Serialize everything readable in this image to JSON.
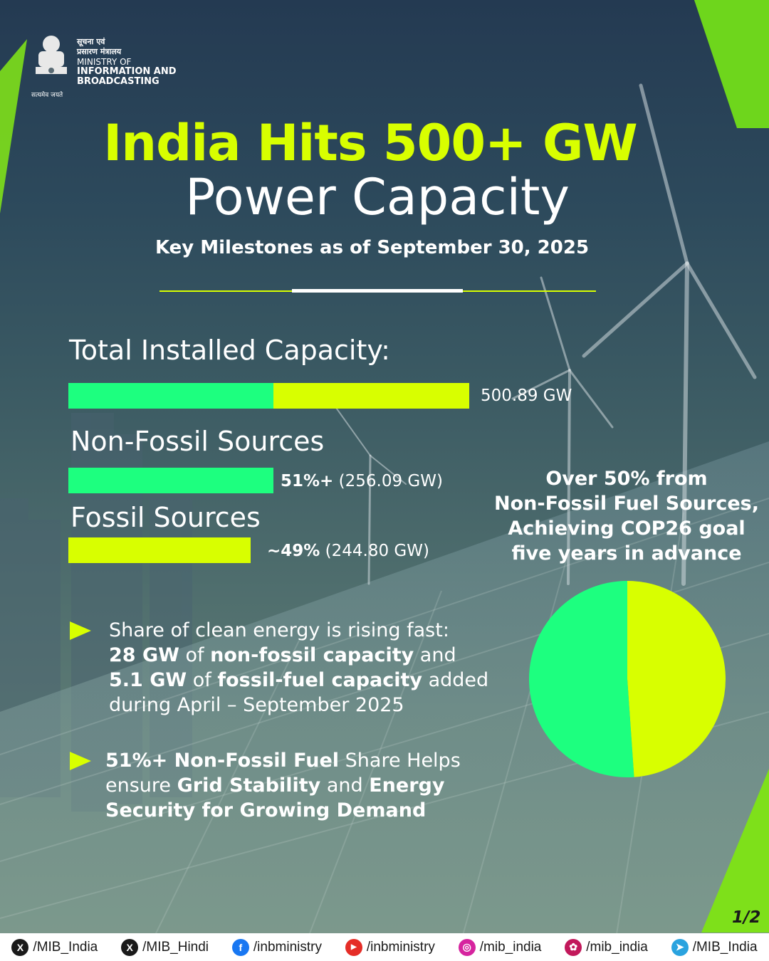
{
  "header": {
    "hindi_line1": "सूचना एवं",
    "hindi_line2": "प्रसारण मंत्रालय",
    "ministry_line1": "MINISTRY OF",
    "ministry_line2": "INFORMATION AND",
    "ministry_line3": "BROADCASTING",
    "emblem_motto": "सत्यमेव जयते"
  },
  "title": {
    "line1": "India Hits 500+ GW",
    "line2": "Power Capacity",
    "subtitle": "Key Milestones as of September 30, 2025"
  },
  "capacity": {
    "total_label": "Total Installed Capacity:",
    "total_value": "500.89 GW",
    "nonfossil_label": "Non-Fossil Sources",
    "nonfossil_pct": "51%+",
    "nonfossil_gw": " (256.09 GW)",
    "fossil_label": "Fossil Sources",
    "fossil_pct": "~49%",
    "fossil_gw": " (244.80 GW)"
  },
  "bullets": {
    "b1_line1": "Share of clean energy is rising fast:",
    "b1_l2_a": "28 GW",
    "b1_l2_b": " of ",
    "b1_l2_c": "non-fossil capacity",
    "b1_l2_d": " and",
    "b1_l3_a": "5.1 GW",
    "b1_l3_b": " of ",
    "b1_l3_c": "fossil-fuel capacity",
    "b1_l3_d": " added",
    "b1_line4": "during April – September 2025",
    "b2_l1_a": "51%+ Non-Fossil Fuel",
    "b2_l1_b": " Share Helps",
    "b2_l2_a": "ensure ",
    "b2_l2_b": "Grid Stability",
    "b2_l2_c": " and ",
    "b2_l2_d": "Energy",
    "b2_line3": "Security for Growing Demand"
  },
  "pie_heading": {
    "line1": "Over 50% from",
    "line2": "Non-Fossil Fuel Sources,",
    "line3": "Achieving COP26 goal",
    "line4": "five years in advance"
  },
  "page_indicator": "1/2",
  "footer": {
    "handles": [
      {
        "icon": "x-icon",
        "label": "/MIB_India"
      },
      {
        "icon": "x-icon",
        "label": "/MIB_Hindi"
      },
      {
        "icon": "facebook-icon",
        "label": "/inbministry"
      },
      {
        "icon": "youtube-icon",
        "label": "/inbministry"
      },
      {
        "icon": "instagram-icon",
        "label": "/mib_india"
      },
      {
        "icon": "koo-icon",
        "label": "/mib_india"
      },
      {
        "icon": "telegram-icon",
        "label": "/MIB_India"
      }
    ]
  },
  "colors": {
    "lime": "#d8ff00",
    "green": "#1dff7f"
  },
  "chart_data": [
    {
      "type": "bar",
      "orientation": "horizontal",
      "categories": [
        "Total Installed Capacity:",
        "Non-Fossil Sources",
        "Fossil Sources"
      ],
      "values": [
        500.89,
        256.09,
        244.8
      ],
      "unit": "GW",
      "total_split": [
        256.09,
        244.8
      ]
    },
    {
      "type": "pie",
      "categories": [
        "Non-Fossil",
        "Fossil"
      ],
      "values": [
        51.1,
        48.9
      ],
      "colors": [
        "#1dff7f",
        "#d8ff00"
      ]
    }
  ]
}
